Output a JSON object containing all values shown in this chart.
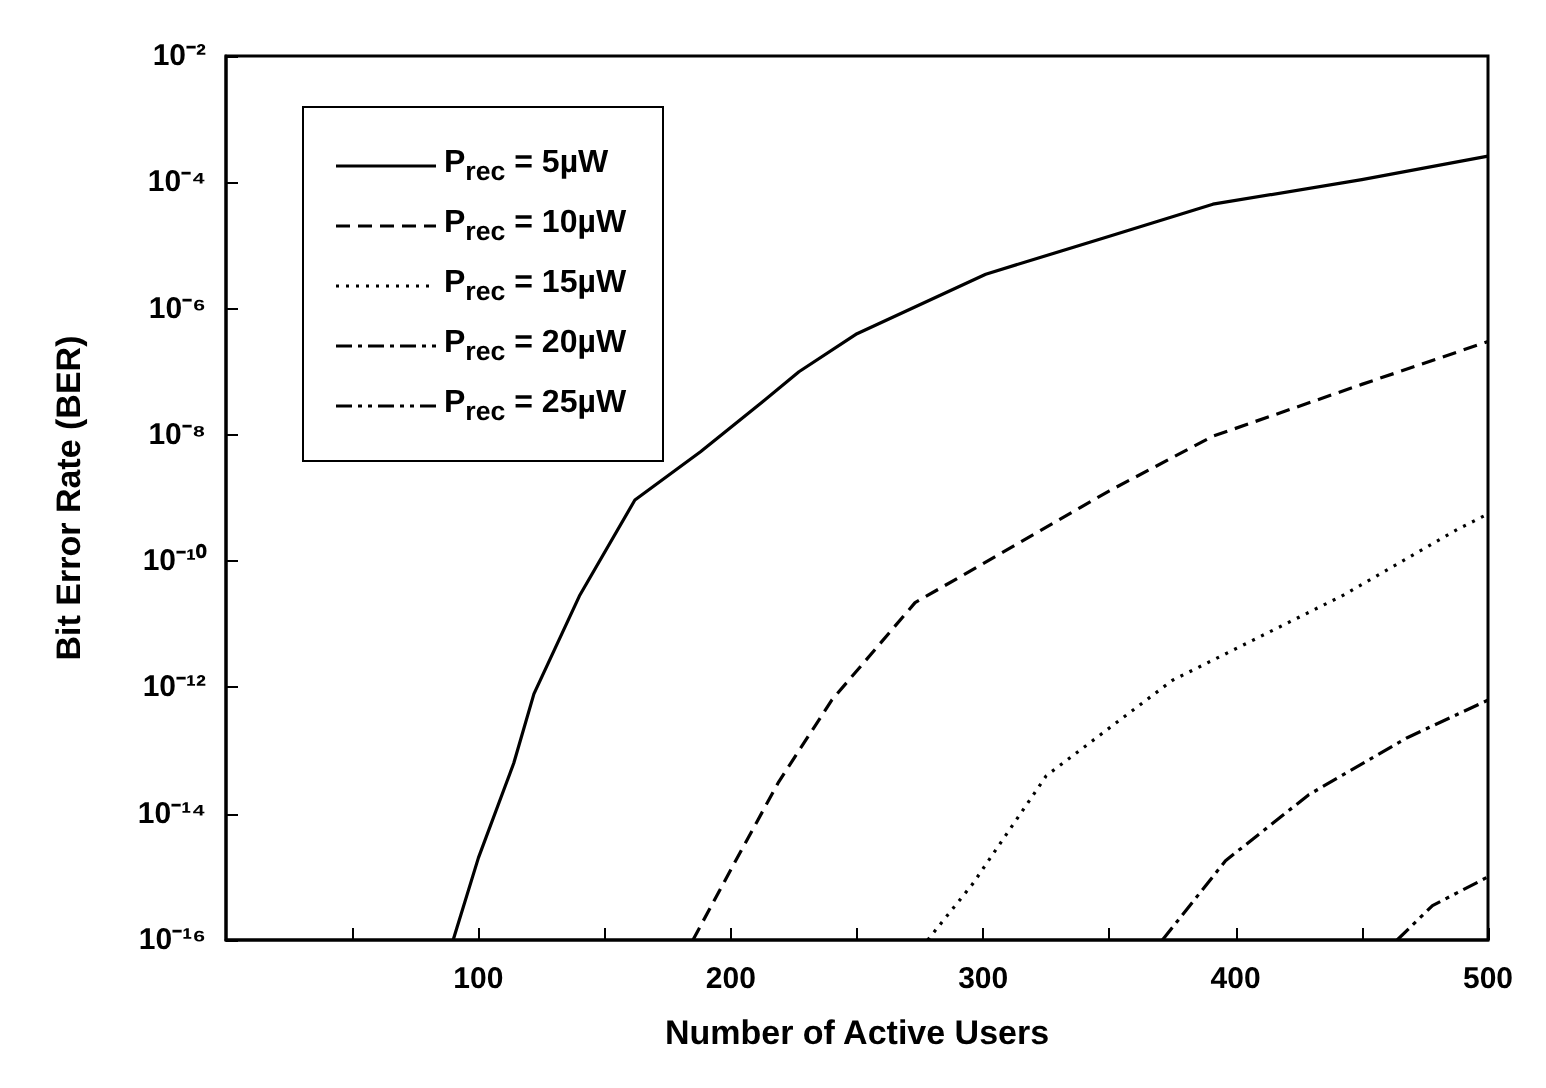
{
  "chart_data": {
    "type": "line",
    "xlabel": "Number of Active Users",
    "ylabel": "Bit Error Rate (BER)",
    "log": "y",
    "xlim": [
      0,
      500
    ],
    "ylim": [
      1e-16,
      0.01
    ],
    "xticks": [
      {
        "value": 50,
        "label": null
      },
      100,
      {
        "value": 150,
        "label": null
      },
      200,
      {
        "value": 250,
        "label": null
      },
      300,
      {
        "value": 350,
        "label": null
      },
      400,
      {
        "value": 450,
        "label": null
      },
      500
    ],
    "yticks": [
      {
        "value": 1e-16,
        "label": "10⁻¹⁶"
      },
      {
        "value": 1e-14,
        "label": "10⁻¹⁴"
      },
      {
        "value": 1e-12,
        "label": "10⁻¹²"
      },
      {
        "value": 1e-10,
        "label": "10⁻¹⁰"
      },
      {
        "value": 1e-08,
        "label": "10⁻⁸"
      },
      {
        "value": 1e-06,
        "label": "10⁻⁶"
      },
      {
        "value": 0.0001,
        "label": "10⁻⁴"
      },
      {
        "value": 0.01,
        "label": "10⁻²"
      }
    ],
    "grid": false,
    "legend": "top left",
    "marker": "none",
    "series": [
      {
        "name": "P$_{rec}$ = 5µW",
        "color": "#000000",
        "line_style": "solid",
        "x": [
          90,
          100,
          114,
          122,
          140,
          162,
          188,
          212,
          227,
          250,
          301,
          350,
          391,
          450,
          500
        ],
        "values": [
          1e-16,
          2e-15,
          6.3e-14,
          7.9e-13,
          2.8e-11,
          9.3e-10,
          5.4e-09,
          3.2e-08,
          1e-07,
          4e-07,
          3.5e-06,
          1.4e-05,
          4.5e-05,
          0.00011,
          0.00026
        ]
      },
      {
        "name": "P$_{rec}$ = 10µW",
        "color": "#000000",
        "line_style": "dashed",
        "x": [
          185,
          200,
          219,
          240,
          273,
          308,
          350,
          391,
          450,
          500
        ],
        "values": [
          1e-16,
          1.3e-15,
          3.2e-14,
          6.3e-13,
          2.2e-11,
          1.4e-10,
          1.3e-09,
          9.5e-09,
          6.3e-08,
          3e-07
        ]
      },
      {
        "name": "P$_{rec}$ = 15µW",
        "color": "#000000",
        "line_style": "dotted",
        "x": [
          278,
          296,
          325,
          375,
          442,
          488,
          500
        ],
        "values": [
          1e-16,
          7.9e-16,
          4e-14,
          1.3e-12,
          2.8e-11,
          3.2e-10,
          5.6e-10
        ]
      },
      {
        "name": "P$_{rec}$ = 20µW",
        "color": "#000000",
        "line_style": "dashdot",
        "x": [
          371,
          396,
          429,
          468,
          500
        ],
        "values": [
          1e-16,
          1.8e-15,
          2e-14,
          1.6e-13,
          6.3e-13
        ]
      },
      {
        "name": "P$_{rec}$ = 25µW",
        "color": "#000000",
        "line_style": "dashdotdot",
        "x": [
          464,
          478,
          500
        ],
        "values": [
          1e-16,
          3.5e-16,
          1e-15
        ]
      }
    ]
  }
}
